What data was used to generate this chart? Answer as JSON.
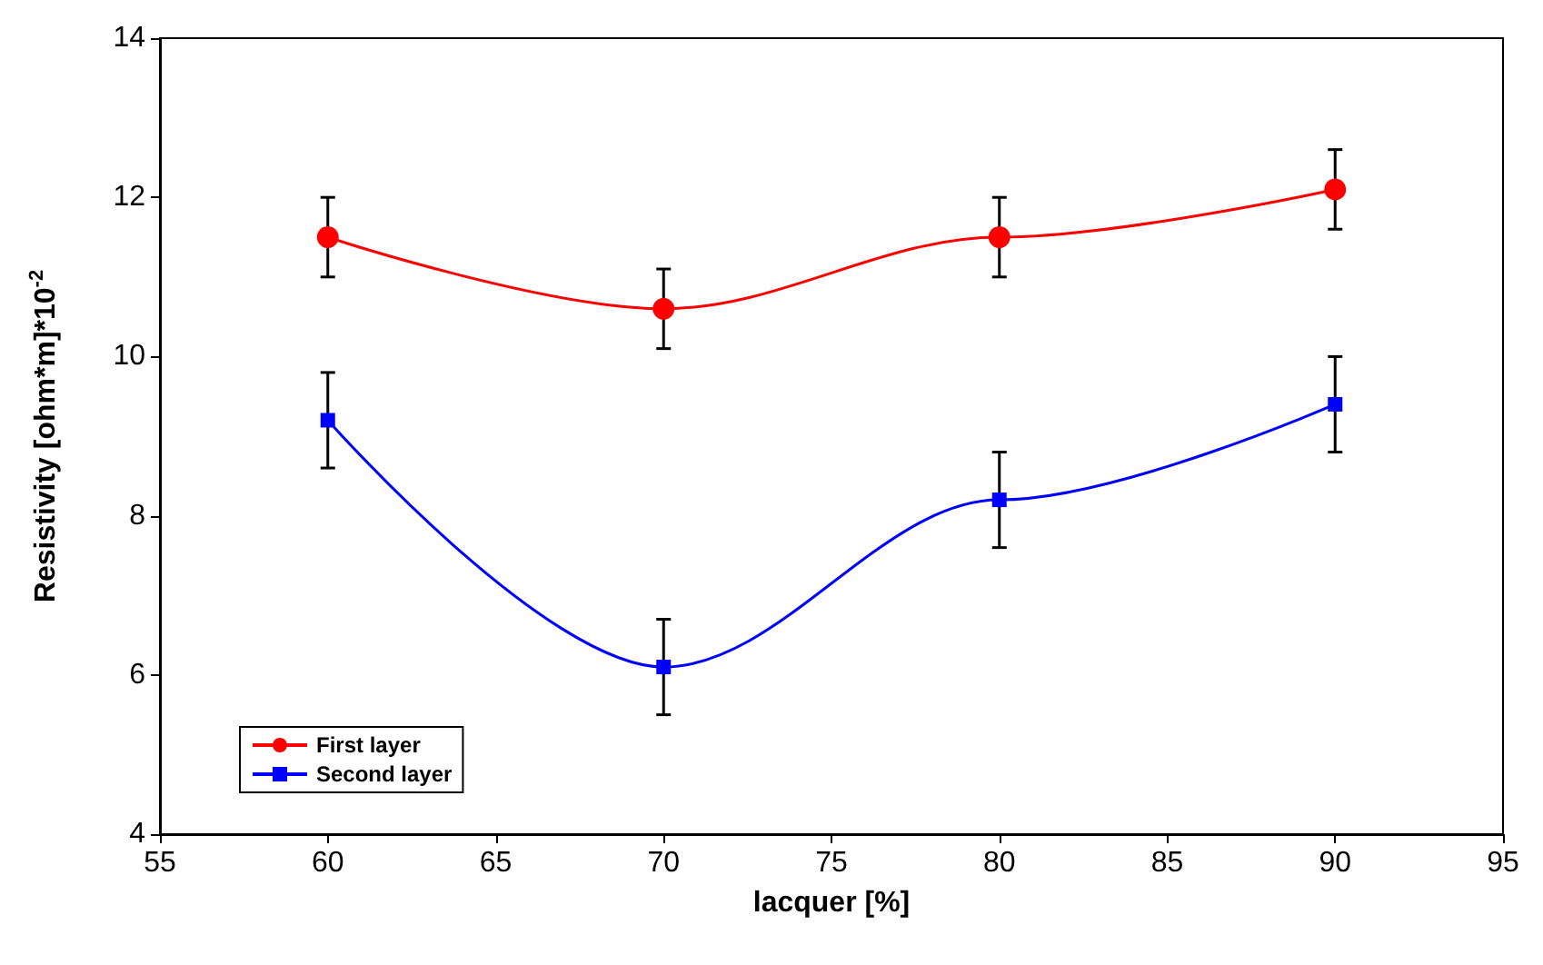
{
  "chart_data": {
    "type": "line",
    "xlabel": "lacquer [%]",
    "ylabel": "Resistivity [ohm*m]*10$^{-2}$",
    "x": [
      60,
      70,
      80,
      90
    ],
    "series": [
      {
        "name": "First layer",
        "color": "#ff0000",
        "marker": "circle",
        "values": [
          11.5,
          10.6,
          11.5,
          12.1
        ],
        "errors": [
          0.5,
          0.5,
          0.5,
          0.5
        ]
      },
      {
        "name": "Second layer",
        "color": "#0000ff",
        "marker": "square",
        "values": [
          9.2,
          6.1,
          8.2,
          9.4
        ],
        "errors": [
          0.6,
          0.6,
          0.6,
          0.6
        ]
      }
    ],
    "xlim": [
      55,
      95
    ],
    "xticks": [
      55,
      60,
      65,
      70,
      75,
      80,
      85,
      90,
      95
    ],
    "ylim": [
      4,
      14
    ],
    "yticks": [
      4,
      6,
      8,
      10,
      12,
      14
    ],
    "grid": false,
    "legend": "bottom left"
  }
}
